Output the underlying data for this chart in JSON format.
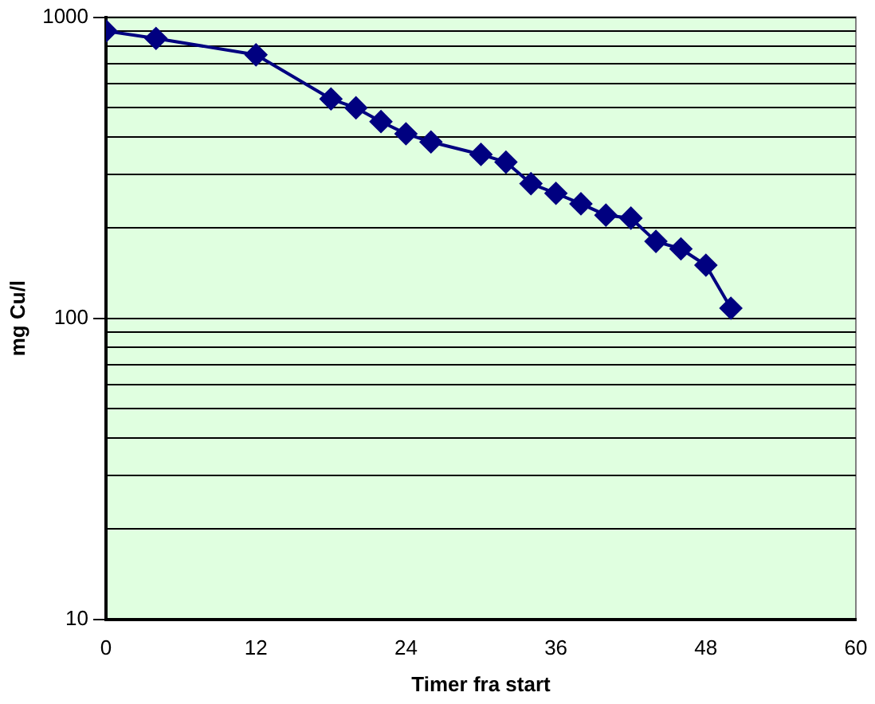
{
  "chart_data": {
    "type": "line",
    "xlabel": "Timer fra start",
    "ylabel": "mg Cu/l",
    "x": [
      0,
      4,
      12,
      18,
      20,
      22,
      24,
      26,
      30,
      32,
      34,
      36,
      38,
      40,
      42,
      44,
      46,
      48,
      50
    ],
    "series": [
      {
        "color": "#000080",
        "values": [
          900,
          850,
          750,
          535,
          500,
          450,
          410,
          385,
          350,
          330,
          280,
          260,
          240,
          220,
          215,
          180,
          170,
          150,
          108
        ]
      }
    ],
    "xlim": [
      0,
      60
    ],
    "xticks": [
      0,
      12,
      24,
      36,
      48,
      60
    ],
    "ylim": [
      10,
      1000
    ],
    "yticks": [
      10,
      {
        "value": 20,
        "label": null
      },
      {
        "value": 30,
        "label": null
      },
      {
        "value": 40,
        "label": null
      },
      {
        "value": 50,
        "label": null
      },
      {
        "value": 60,
        "label": null
      },
      {
        "value": 70,
        "label": null
      },
      {
        "value": 80,
        "label": null
      },
      {
        "value": 90,
        "label": null
      },
      100,
      {
        "value": 200,
        "label": null
      },
      {
        "value": 300,
        "label": null
      },
      {
        "value": 400,
        "label": null
      },
      {
        "value": 500,
        "label": null
      },
      {
        "value": 600,
        "label": null
      },
      {
        "value": 700,
        "label": null
      },
      {
        "value": 800,
        "label": null
      },
      {
        "value": 900,
        "label": null
      },
      1000
    ],
    "log": true,
    "grid": "y",
    "legend": false,
    "marker": "diamond",
    "line_style": "solid"
  }
}
